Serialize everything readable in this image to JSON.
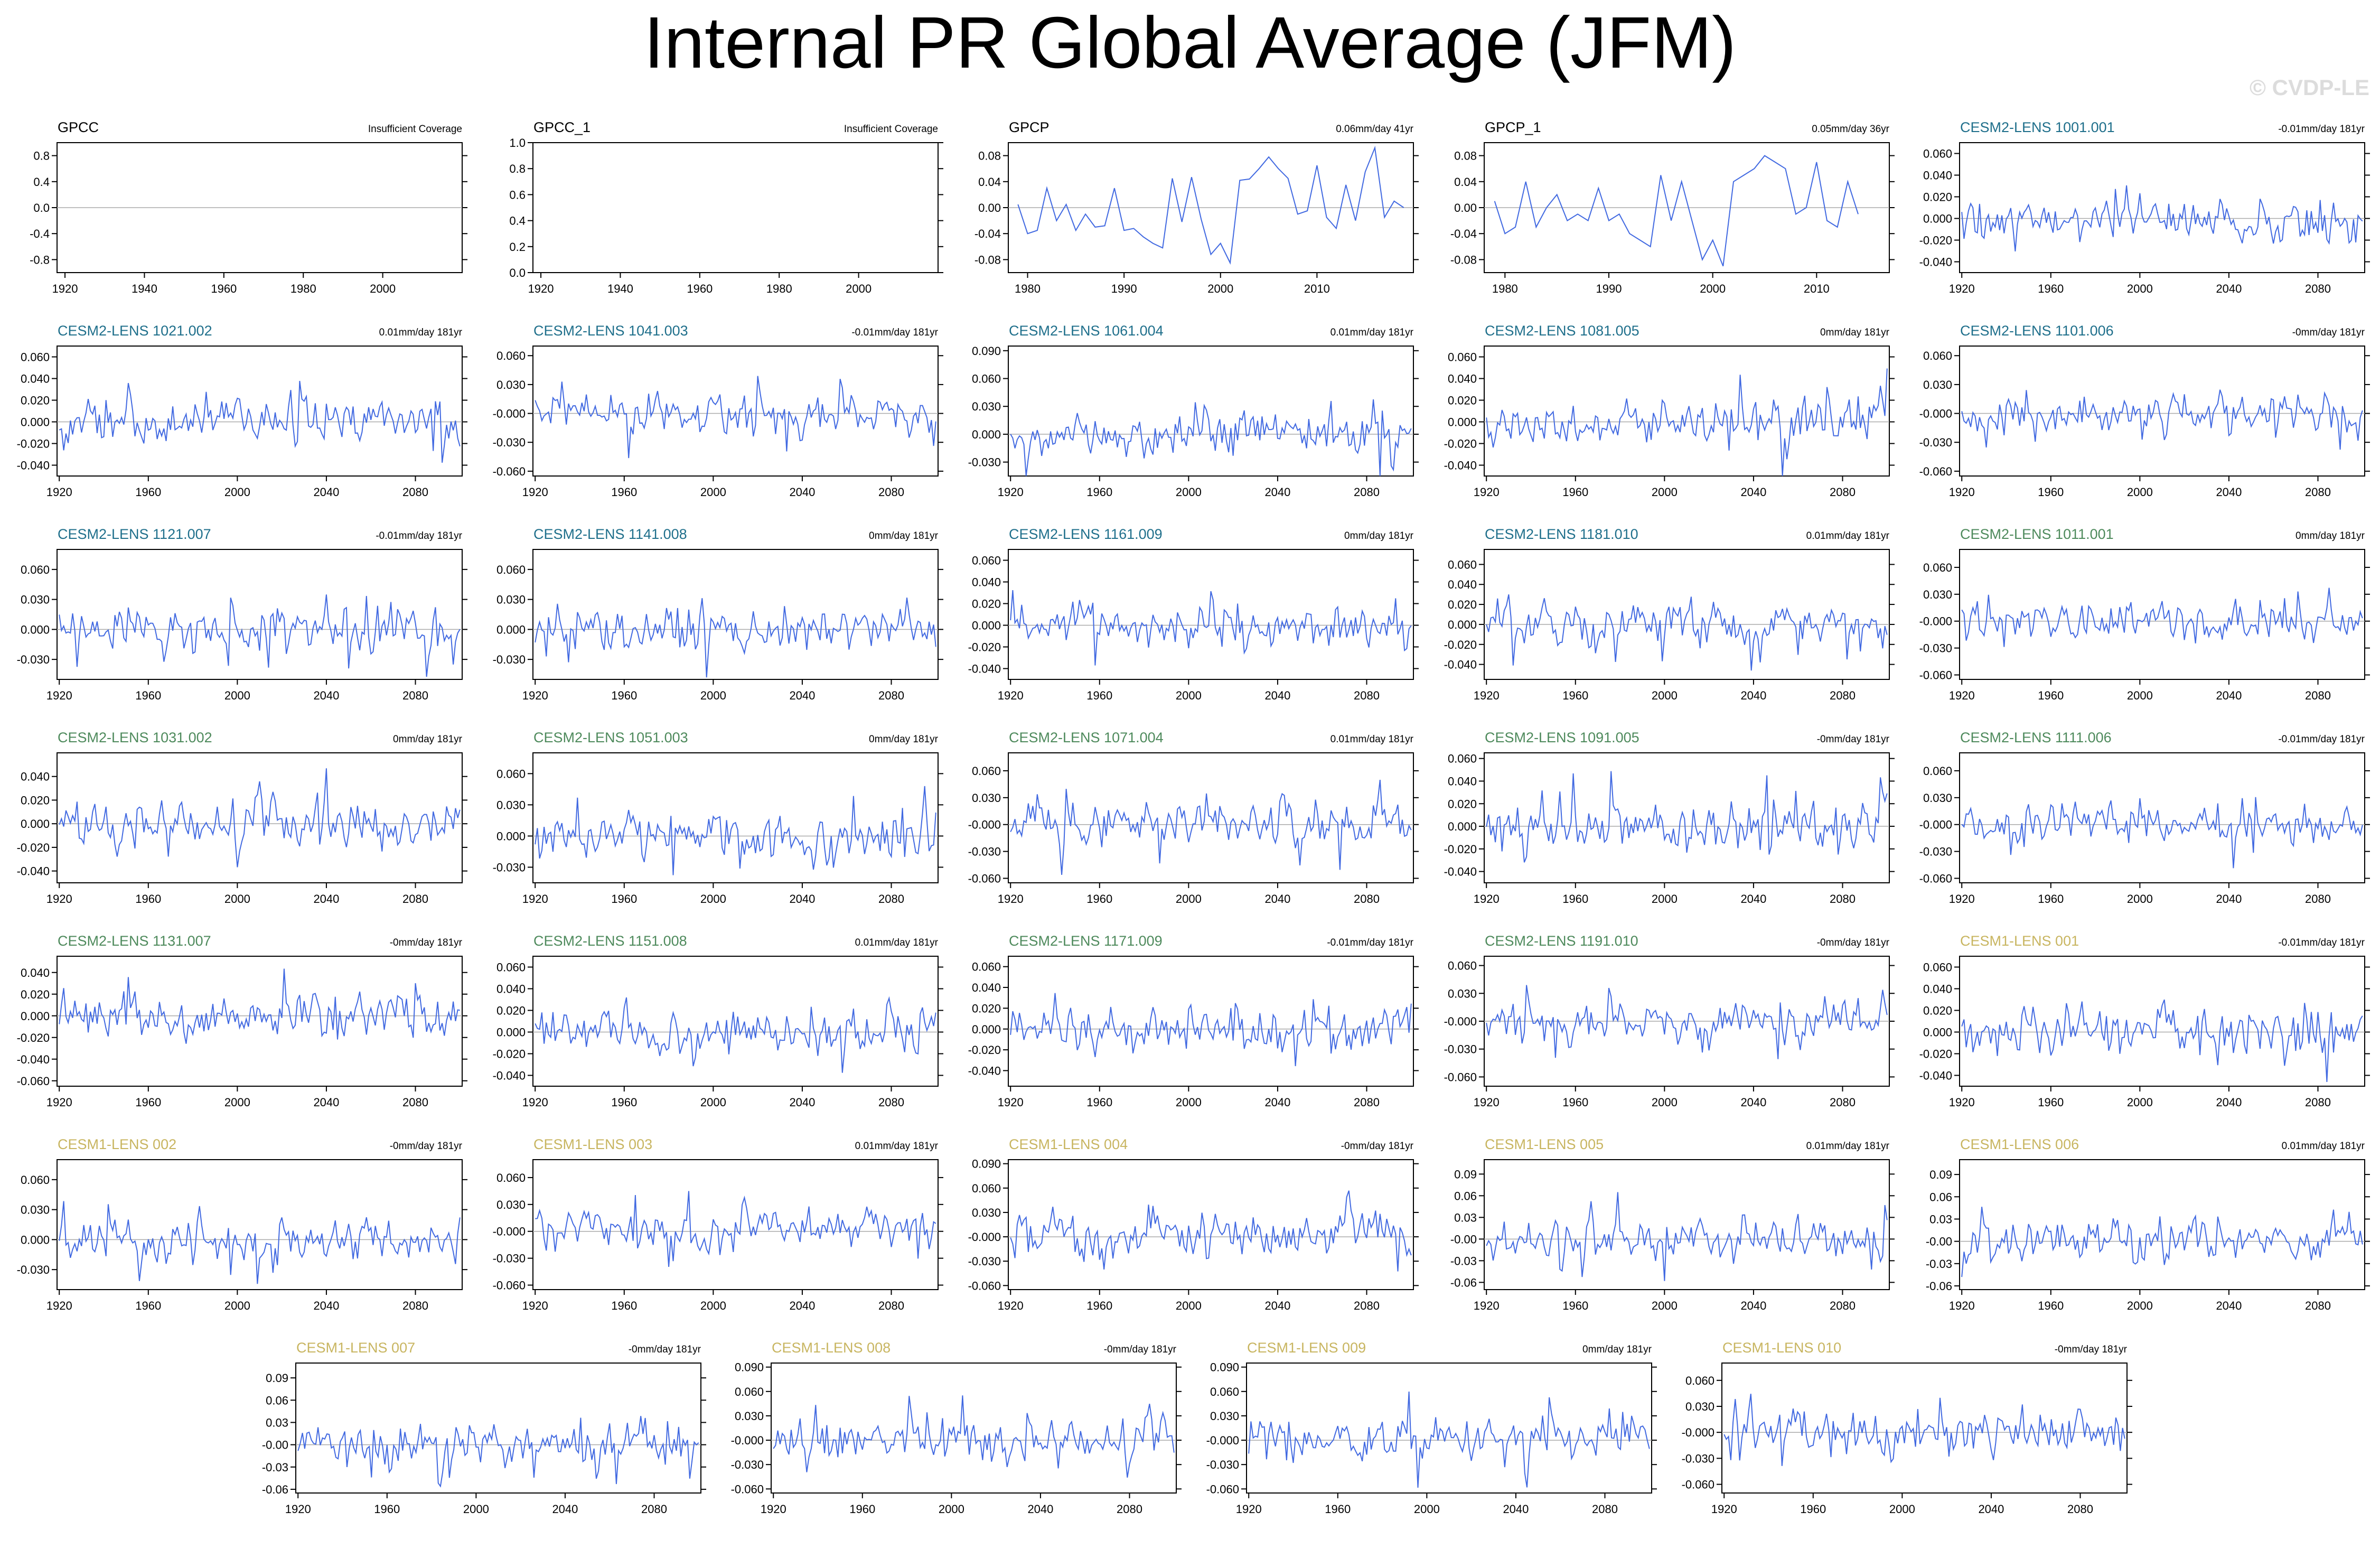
{
  "title": "Internal PR Global Average (JFM)",
  "watermark": "© CVDP-LE",
  "colors": {
    "line": "#4169e1",
    "obs": "#000000",
    "cesm2_macro": "#1f6f8b",
    "cesm2_smbb": "#4e8a5c",
    "cesm1": "#c8b560",
    "zero": "#aaaaaa",
    "axis": "#000000"
  },
  "chart_data": [
    {
      "type": "line",
      "name": "GPCC",
      "color_key": "obs",
      "right_label": "Insufficient Coverage",
      "ylim": [
        -1,
        1
      ],
      "yticks": [
        "0.8",
        "0.4",
        "0.0",
        "-0.4",
        "-0.8"
      ],
      "ytick_values": [
        0.8,
        0.4,
        0,
        -0.4,
        -0.8
      ],
      "xlim": [
        1918,
        2020
      ],
      "xticks": [
        1920,
        1940,
        1960,
        1980,
        2000
      ],
      "values": []
    },
    {
      "type": "line",
      "name": "GPCC_1",
      "color_key": "obs",
      "right_label": "Insufficient Coverage",
      "ylim": [
        0,
        1
      ],
      "yticks": [
        "1.0",
        "0.8",
        "0.6",
        "0.4",
        "0.2",
        "0.0"
      ],
      "ytick_values": [
        1,
        0.8,
        0.6,
        0.4,
        0.2,
        0
      ],
      "xlim": [
        1918,
        2020
      ],
      "xticks": [
        1920,
        1940,
        1960,
        1980,
        2000
      ],
      "values": []
    },
    {
      "type": "line",
      "name": "GPCP",
      "color_key": "obs",
      "right_label": "0.06mm/day 41yr",
      "xlim": [
        1978,
        2020
      ],
      "start": 1979,
      "ylim": [
        -0.1,
        0.1
      ],
      "yticks": [
        "0.08",
        "0.04",
        "0.00",
        "-0.04",
        "-0.08"
      ],
      "ytick_values": [
        0.08,
        0.04,
        0,
        -0.04,
        -0.08
      ],
      "xticks": [
        1980,
        1990,
        2000,
        2010
      ],
      "values": [
        0.005,
        -0.04,
        -0.035,
        0.03,
        -0.02,
        0.005,
        -0.035,
        -0.01,
        -0.03,
        -0.028,
        0.03,
        -0.035,
        -0.032,
        -0.045,
        -0.055,
        -0.062,
        0.045,
        -0.022,
        0.047,
        -0.018,
        -0.072,
        -0.055,
        -0.085,
        0.042,
        0.044,
        0.06,
        0.078,
        0.06,
        0.045,
        -0.01,
        -0.005,
        0.065,
        -0.015,
        -0.032,
        0.035,
        -0.02,
        0.055,
        0.092,
        -0.015,
        0.01,
        0.0
      ]
    },
    {
      "type": "line",
      "name": "GPCP_1",
      "color_key": "obs",
      "right_label": "0.05mm/day 36yr",
      "xlim": [
        1978,
        2017
      ],
      "start": 1979,
      "ylim": [
        -0.1,
        0.1
      ],
      "yticks": [
        "0.08",
        "0.04",
        "0.00",
        "-0.04",
        "-0.08"
      ],
      "ytick_values": [
        0.08,
        0.04,
        0,
        -0.04,
        -0.08
      ],
      "xticks": [
        1980,
        1990,
        2000,
        2010
      ],
      "values": [
        0.01,
        -0.04,
        -0.03,
        0.04,
        -0.03,
        0.0,
        0.02,
        -0.02,
        -0.01,
        -0.02,
        0.03,
        -0.02,
        -0.01,
        -0.04,
        -0.05,
        -0.06,
        0.05,
        -0.02,
        0.04,
        -0.02,
        -0.08,
        -0.05,
        -0.09,
        0.04,
        0.05,
        0.06,
        0.08,
        0.07,
        0.06,
        -0.01,
        0.0,
        0.07,
        -0.02,
        -0.03,
        0.04,
        -0.01
      ]
    },
    {
      "type": "line",
      "name": "CESM2-LENS 1001.001",
      "color_key": "cesm2_macro",
      "right_label": "-0.01mm/day 181yr",
      "seed": 11,
      "amp": 0.02,
      "ylim": [
        -0.05,
        0.07
      ],
      "yticks": [
        "0.060",
        "0.040",
        "0.020",
        "0.000",
        "-0.020",
        "-0.040"
      ],
      "ytick_values": [
        0.06,
        0.04,
        0.02,
        0,
        -0.02,
        -0.04
      ]
    },
    {
      "type": "line",
      "name": "CESM2-LENS 1021.002",
      "color_key": "cesm2_macro",
      "right_label": "0.01mm/day 181yr",
      "seed": 12,
      "amp": 0.02,
      "ylim": [
        -0.05,
        0.07
      ],
      "yticks": [
        "0.060",
        "0.040",
        "0.020",
        "0.000",
        "-0.020",
        "-0.040"
      ],
      "ytick_values": [
        0.06,
        0.04,
        0.02,
        0,
        -0.02,
        -0.04
      ]
    },
    {
      "type": "line",
      "name": "CESM2-LENS 1041.003",
      "color_key": "cesm2_macro",
      "right_label": "-0.01mm/day 181yr",
      "seed": 13,
      "amp": 0.02,
      "ylim": [
        -0.065,
        0.07
      ],
      "yticks": [
        "0.060",
        "0.030",
        "-0.000",
        "-0.030",
        "-0.060"
      ],
      "ytick_values": [
        0.06,
        0.03,
        0,
        -0.03,
        -0.06
      ]
    },
    {
      "type": "line",
      "name": "CESM2-LENS 1061.004",
      "color_key": "cesm2_macro",
      "right_label": "0.01mm/day 181yr",
      "seed": 14,
      "amp": 0.022,
      "ylim": [
        -0.045,
        0.095
      ],
      "yticks": [
        "0.090",
        "0.060",
        "0.030",
        "0.000",
        "-0.030"
      ],
      "ytick_values": [
        0.09,
        0.06,
        0.03,
        0,
        -0.03
      ]
    },
    {
      "type": "line",
      "name": "CESM2-LENS 1081.005",
      "color_key": "cesm2_macro",
      "right_label": "0mm/day 181yr",
      "seed": 15,
      "amp": 0.02,
      "ylim": [
        -0.05,
        0.07
      ],
      "yticks": [
        "0.060",
        "0.040",
        "0.020",
        "0.000",
        "-0.020",
        "-0.040"
      ],
      "ytick_values": [
        0.06,
        0.04,
        0.02,
        0,
        -0.02,
        -0.04
      ]
    },
    {
      "type": "line",
      "name": "CESM2-LENS 1101.006",
      "color_key": "cesm2_macro",
      "right_label": "-0mm/day 181yr",
      "seed": 16,
      "amp": 0.02,
      "ylim": [
        -0.065,
        0.07
      ],
      "yticks": [
        "0.060",
        "0.030",
        "-0.000",
        "-0.030",
        "-0.060"
      ],
      "ytick_values": [
        0.06,
        0.03,
        0,
        -0.03,
        -0.06
      ]
    },
    {
      "type": "line",
      "name": "CESM2-LENS 1121.007",
      "color_key": "cesm2_macro",
      "right_label": "-0.01mm/day 181yr",
      "seed": 17,
      "amp": 0.02,
      "ylim": [
        -0.05,
        0.08
      ],
      "yticks": [
        "0.060",
        "0.030",
        "0.000",
        "-0.030"
      ],
      "ytick_values": [
        0.06,
        0.03,
        0,
        -0.03
      ]
    },
    {
      "type": "line",
      "name": "CESM2-LENS 1141.008",
      "color_key": "cesm2_macro",
      "right_label": "0mm/day 181yr",
      "seed": 18,
      "amp": 0.02,
      "ylim": [
        -0.05,
        0.08
      ],
      "yticks": [
        "0.060",
        "0.030",
        "0.000",
        "-0.030"
      ],
      "ytick_values": [
        0.06,
        0.03,
        0,
        -0.03
      ]
    },
    {
      "type": "line",
      "name": "CESM2-LENS 1161.009",
      "color_key": "cesm2_macro",
      "right_label": "0mm/day 181yr",
      "seed": 19,
      "amp": 0.018,
      "ylim": [
        -0.05,
        0.07
      ],
      "yticks": [
        "0.060",
        "0.040",
        "0.020",
        "0.000",
        "-0.020",
        "-0.040"
      ],
      "ytick_values": [
        0.06,
        0.04,
        0.02,
        0,
        -0.02,
        -0.04
      ]
    },
    {
      "type": "line",
      "name": "CESM2-LENS 1181.010",
      "color_key": "cesm2_macro",
      "right_label": "0.01mm/day 181yr",
      "seed": 20,
      "amp": 0.02,
      "ylim": [
        -0.055,
        0.075
      ],
      "yticks": [
        "0.060",
        "0.040",
        "0.020",
        "0.000",
        "-0.020",
        "-0.040"
      ],
      "ytick_values": [
        0.06,
        0.04,
        0.02,
        0,
        -0.02,
        -0.04
      ]
    },
    {
      "type": "line",
      "name": "CESM2-LENS 1011.001",
      "color_key": "cesm2_smbb",
      "right_label": "0mm/day 181yr",
      "seed": 21,
      "amp": 0.02,
      "ylim": [
        -0.065,
        0.08
      ],
      "yticks": [
        "0.060",
        "0.030",
        "-0.000",
        "-0.030",
        "-0.060"
      ],
      "ytick_values": [
        0.06,
        0.03,
        0,
        -0.03,
        -0.06
      ]
    },
    {
      "type": "line",
      "name": "CESM2-LENS 1031.002",
      "color_key": "cesm2_smbb",
      "right_label": "0mm/day 181yr",
      "seed": 22,
      "amp": 0.02,
      "ylim": [
        -0.05,
        0.06
      ],
      "yticks": [
        "0.040",
        "0.020",
        "0.000",
        "-0.020",
        "-0.040"
      ],
      "ytick_values": [
        0.04,
        0.02,
        0,
        -0.02,
        -0.04
      ]
    },
    {
      "type": "line",
      "name": "CESM2-LENS 1051.003",
      "color_key": "cesm2_smbb",
      "right_label": "0mm/day 181yr",
      "seed": 23,
      "amp": 0.02,
      "ylim": [
        -0.045,
        0.08
      ],
      "yticks": [
        "0.060",
        "0.030",
        "0.000",
        "-0.030"
      ],
      "ytick_values": [
        0.06,
        0.03,
        0,
        -0.03
      ]
    },
    {
      "type": "line",
      "name": "CESM2-LENS 1071.004",
      "color_key": "cesm2_smbb",
      "right_label": "0.01mm/day 181yr",
      "seed": 24,
      "amp": 0.022,
      "ylim": [
        -0.065,
        0.08
      ],
      "yticks": [
        "0.060",
        "0.030",
        "-0.000",
        "-0.030",
        "-0.060"
      ],
      "ytick_values": [
        0.06,
        0.03,
        0,
        -0.03,
        -0.06
      ]
    },
    {
      "type": "line",
      "name": "CESM2-LENS 1091.005",
      "color_key": "cesm2_smbb",
      "right_label": "-0mm/day 181yr",
      "seed": 25,
      "amp": 0.02,
      "ylim": [
        -0.05,
        0.065
      ],
      "yticks": [
        "0.060",
        "0.040",
        "0.020",
        "0.000",
        "-0.020",
        "-0.040"
      ],
      "ytick_values": [
        0.06,
        0.04,
        0.02,
        0,
        -0.02,
        -0.04
      ]
    },
    {
      "type": "line",
      "name": "CESM2-LENS 1111.006",
      "color_key": "cesm2_smbb",
      "right_label": "-0.01mm/day 181yr",
      "seed": 26,
      "amp": 0.02,
      "ylim": [
        -0.065,
        0.08
      ],
      "yticks": [
        "0.060",
        "0.030",
        "-0.000",
        "-0.030",
        "-0.060"
      ],
      "ytick_values": [
        0.06,
        0.03,
        0,
        -0.03,
        -0.06
      ]
    },
    {
      "type": "line",
      "name": "CESM2-LENS 1131.007",
      "color_key": "cesm2_smbb",
      "right_label": "-0mm/day 181yr",
      "seed": 27,
      "amp": 0.02,
      "ylim": [
        -0.065,
        0.055
      ],
      "yticks": [
        "0.040",
        "0.020",
        "0.000",
        "-0.020",
        "-0.040",
        "-0.060"
      ],
      "ytick_values": [
        0.04,
        0.02,
        0,
        -0.02,
        -0.04,
        -0.06
      ]
    },
    {
      "type": "line",
      "name": "CESM2-LENS 1151.008",
      "color_key": "cesm2_smbb",
      "right_label": "0.01mm/day 181yr",
      "seed": 28,
      "amp": 0.02,
      "ylim": [
        -0.05,
        0.07
      ],
      "yticks": [
        "0.060",
        "0.040",
        "0.020",
        "0.000",
        "-0.020",
        "-0.040"
      ],
      "ytick_values": [
        0.06,
        0.04,
        0.02,
        0,
        -0.02,
        -0.04
      ]
    },
    {
      "type": "line",
      "name": "CESM2-LENS 1171.009",
      "color_key": "cesm2_smbb",
      "right_label": "-0.01mm/day 181yr",
      "seed": 29,
      "amp": 0.02,
      "ylim": [
        -0.055,
        0.07
      ],
      "yticks": [
        "0.060",
        "0.040",
        "0.020",
        "0.000",
        "-0.020",
        "-0.040"
      ],
      "ytick_values": [
        0.06,
        0.04,
        0.02,
        0,
        -0.02,
        -0.04
      ]
    },
    {
      "type": "line",
      "name": "CESM2-LENS 1191.010",
      "color_key": "cesm2_smbb",
      "right_label": "-0mm/day 181yr",
      "seed": 30,
      "amp": 0.02,
      "ylim": [
        -0.07,
        0.07
      ],
      "yticks": [
        "0.060",
        "0.030",
        "-0.000",
        "-0.030",
        "-0.060"
      ],
      "ytick_values": [
        0.06,
        0.03,
        0,
        -0.03,
        -0.06
      ]
    },
    {
      "type": "line",
      "name": "CESM1-LENS 001",
      "color_key": "cesm1",
      "right_label": "-0.01mm/day 181yr",
      "seed": 31,
      "amp": 0.02,
      "ylim": [
        -0.05,
        0.07
      ],
      "yticks": [
        "0.060",
        "0.040",
        "0.020",
        "0.000",
        "-0.020",
        "-0.040"
      ],
      "ytick_values": [
        0.06,
        0.04,
        0.02,
        0,
        -0.02,
        -0.04
      ]
    },
    {
      "type": "line",
      "name": "CESM1-LENS 002",
      "color_key": "cesm1",
      "right_label": "-0mm/day 181yr",
      "seed": 32,
      "amp": 0.02,
      "ylim": [
        -0.05,
        0.08
      ],
      "yticks": [
        "0.060",
        "0.030",
        "0.000",
        "-0.030"
      ],
      "ytick_values": [
        0.06,
        0.03,
        0,
        -0.03
      ]
    },
    {
      "type": "line",
      "name": "CESM1-LENS 003",
      "color_key": "cesm1",
      "right_label": "0.01mm/day 181yr",
      "seed": 33,
      "amp": 0.022,
      "ylim": [
        -0.065,
        0.08
      ],
      "yticks": [
        "0.060",
        "0.030",
        "-0.000",
        "-0.030",
        "-0.060"
      ],
      "ytick_values": [
        0.06,
        0.03,
        0,
        -0.03,
        -0.06
      ]
    },
    {
      "type": "line",
      "name": "CESM1-LENS 004",
      "color_key": "cesm1",
      "right_label": "-0mm/day 181yr",
      "seed": 34,
      "amp": 0.025,
      "ylim": [
        -0.065,
        0.095
      ],
      "yticks": [
        "0.090",
        "0.060",
        "0.030",
        "-0.000",
        "-0.030",
        "-0.060"
      ],
      "ytick_values": [
        0.09,
        0.06,
        0.03,
        0,
        -0.03,
        -0.06
      ]
    },
    {
      "type": "line",
      "name": "CESM1-LENS 005",
      "color_key": "cesm1",
      "right_label": "0.01mm/day 181yr",
      "seed": 35,
      "amp": 0.025,
      "ylim": [
        -0.07,
        0.11
      ],
      "yticks": [
        "0.09",
        "0.06",
        "0.03",
        "-0.00",
        "-0.03",
        "-0.06"
      ],
      "ytick_values": [
        0.09,
        0.06,
        0.03,
        0,
        -0.03,
        -0.06
      ]
    },
    {
      "type": "line",
      "name": "CESM1-LENS 006",
      "color_key": "cesm1",
      "right_label": "0.01mm/day 181yr",
      "seed": 36,
      "amp": 0.025,
      "ylim": [
        -0.065,
        0.11
      ],
      "yticks": [
        "0.09",
        "0.06",
        "0.03",
        "-0.00",
        "-0.03",
        "-0.06"
      ],
      "ytick_values": [
        0.09,
        0.06,
        0.03,
        0,
        -0.03,
        -0.06
      ]
    },
    {
      "type": "line",
      "name": "CESM1-LENS 007",
      "color_key": "cesm1",
      "right_label": "-0mm/day 181yr",
      "seed": 37,
      "amp": 0.025,
      "ylim": [
        -0.065,
        0.11
      ],
      "yticks": [
        "0.09",
        "0.06",
        "0.03",
        "-0.00",
        "-0.03",
        "-0.06"
      ],
      "ytick_values": [
        0.09,
        0.06,
        0.03,
        0,
        -0.03,
        -0.06
      ]
    },
    {
      "type": "line",
      "name": "CESM1-LENS 008",
      "color_key": "cesm1",
      "right_label": "-0mm/day 181yr",
      "seed": 38,
      "amp": 0.025,
      "ylim": [
        -0.065,
        0.095
      ],
      "yticks": [
        "0.090",
        "0.060",
        "0.030",
        "-0.000",
        "-0.030",
        "-0.060"
      ],
      "ytick_values": [
        0.09,
        0.06,
        0.03,
        0,
        -0.03,
        -0.06
      ]
    },
    {
      "type": "line",
      "name": "CESM1-LENS 009",
      "color_key": "cesm1",
      "right_label": "0mm/day 181yr",
      "seed": 39,
      "amp": 0.025,
      "ylim": [
        -0.065,
        0.095
      ],
      "yticks": [
        "0.090",
        "0.060",
        "0.030",
        "-0.000",
        "-0.030",
        "-0.060"
      ],
      "ytick_values": [
        0.09,
        0.06,
        0.03,
        0,
        -0.03,
        -0.06
      ]
    },
    {
      "type": "line",
      "name": "CESM1-LENS 010",
      "color_key": "cesm1",
      "right_label": "-0mm/day 181yr",
      "seed": 40,
      "amp": 0.022,
      "ylim": [
        -0.07,
        0.08
      ],
      "yticks": [
        "0.060",
        "0.030",
        "-0.000",
        "-0.030",
        "-0.060"
      ],
      "ytick_values": [
        0.06,
        0.03,
        0,
        -0.03,
        -0.06
      ]
    }
  ],
  "ensemble_x": {
    "start": 1920,
    "length": 181,
    "xlim": [
      1919,
      2101
    ],
    "xticks": [
      1920,
      1960,
      2000,
      2040,
      2080
    ]
  }
}
